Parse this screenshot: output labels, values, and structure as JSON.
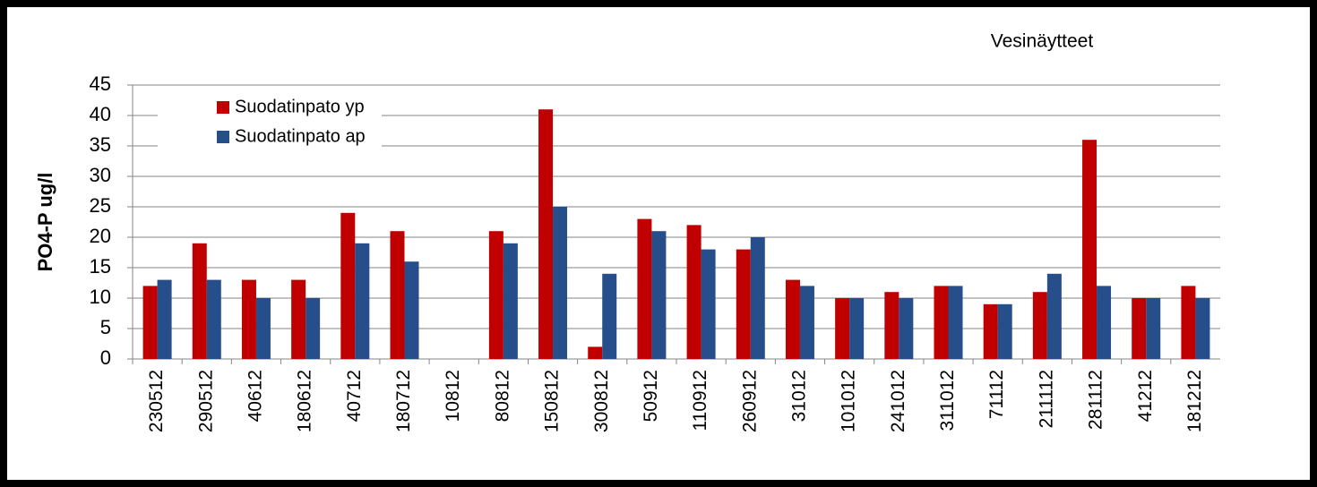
{
  "chart_data": {
    "type": "bar",
    "title": "Vesinäytteet",
    "y_label": "PO4-P ug/l",
    "categories": [
      "230512",
      "290512",
      "40612",
      "180612",
      "40712",
      "180712",
      "10812",
      "80812",
      "150812",
      "300812",
      "50912",
      "110912",
      "260912",
      "31012",
      "101012",
      "241012",
      "311012",
      "71112",
      "211112",
      "281112",
      "41212",
      "181212"
    ],
    "series": [
      {
        "name": "Suodatinpato yp",
        "color": "#c00000",
        "values": [
          12,
          19,
          13,
          13,
          24,
          21,
          null,
          21,
          41,
          2,
          23,
          22,
          18,
          13,
          10,
          11,
          12,
          9,
          11,
          36,
          10,
          12
        ]
      },
      {
        "name": "Suodatinpato ap",
        "color": "#254e8a",
        "values": [
          13,
          13,
          10,
          10,
          19,
          16,
          null,
          19,
          25,
          14,
          21,
          18,
          20,
          12,
          10,
          10,
          12,
          9,
          14,
          12,
          10,
          10
        ]
      }
    ],
    "ylim": [
      0,
      45
    ],
    "yticks": [
      0,
      5,
      10,
      15,
      20,
      25,
      30,
      35,
      40,
      45
    ],
    "grid": true,
    "legend": "top-left"
  }
}
